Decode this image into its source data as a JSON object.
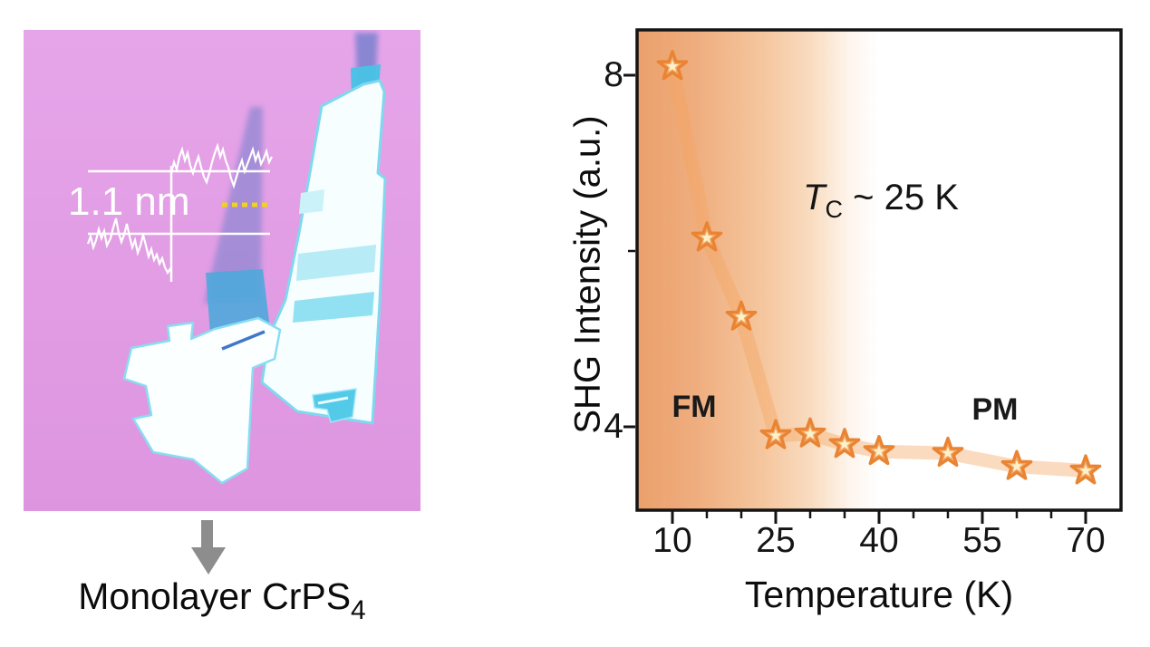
{
  "figure": {
    "left_panel": {
      "height_label": "1.1 nm",
      "caption_text": "Monolayer CrPS",
      "caption_subscript": "4"
    }
  },
  "chart_data": {
    "type": "scatter",
    "title": "",
    "xlabel": "Temperature (K)",
    "ylabel": "SHG Intensity (a.u.)",
    "x": [
      10,
      15,
      20,
      25,
      30,
      35,
      40,
      50,
      60,
      70
    ],
    "y": [
      8.1,
      6.15,
      5.25,
      3.9,
      3.92,
      3.8,
      3.72,
      3.7,
      3.55,
      3.5
    ],
    "xlim": [
      5,
      75
    ],
    "ylim": [
      3.05,
      8.5
    ],
    "xticks_major": [
      10,
      25,
      40,
      55,
      70
    ],
    "xticks_minor": [
      15,
      20,
      30,
      35,
      45,
      50,
      60,
      65
    ],
    "yticks_major": [
      8,
      4
    ],
    "yticks_minor": [
      6
    ],
    "grid": false,
    "legend": false,
    "marker": "star",
    "trend_band": true,
    "annotations": [
      {
        "id": "curie-temperature",
        "symbol": "T",
        "subscript": "C",
        "text": "~ 25 K"
      },
      {
        "id": "ferromagnetic-region",
        "text": "FM"
      },
      {
        "id": "paramagnetic-region",
        "text": "PM"
      }
    ],
    "colors": {
      "marker_stroke": "#E98433",
      "marker_fill": "#F3AA6B",
      "marker_core": "#FBF2CA",
      "band": "rgba(245,166,94,0.40)",
      "gradient_left": "#EBA06B",
      "axis": "#141414"
    }
  }
}
